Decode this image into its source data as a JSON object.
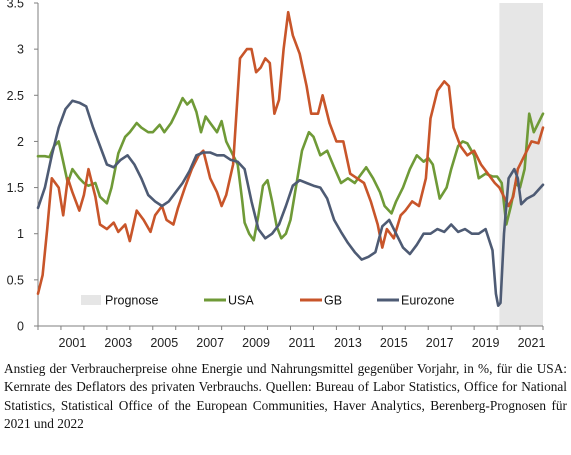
{
  "chart_data": {
    "type": "line",
    "title": "",
    "xlabel": "",
    "ylabel": "",
    "xlim": [
      2000.0,
      2022.0
    ],
    "ylim": [
      0,
      3.5
    ],
    "yticks": [
      0,
      0.5,
      1,
      1.5,
      2,
      2.5,
      3,
      3.5
    ],
    "ytick_labels": [
      "0",
      "0.5",
      "1",
      "1.5",
      "2",
      "2.5",
      "3",
      "3.5"
    ],
    "xticks": [
      2001,
      2003,
      2005,
      2007,
      2009,
      2011,
      2013,
      2015,
      2017,
      2019,
      2021
    ],
    "xtick_labels": [
      "2001",
      "2003",
      "2005",
      "2007",
      "2009",
      "2011",
      "2013",
      "2015",
      "2017",
      "2019",
      "2021"
    ],
    "forecast_region": {
      "label": "Prognose",
      "from": 2020.1,
      "to": 2022.0,
      "color": "#e6e6e6"
    },
    "legend_position": "bottom",
    "series": [
      {
        "name": "USA",
        "color": "#6f9a37",
        "points": [
          [
            2000.0,
            1.84
          ],
          [
            2000.3,
            1.84
          ],
          [
            2000.5,
            1.83
          ],
          [
            2000.7,
            1.95
          ],
          [
            2000.9,
            2.0
          ],
          [
            2001.1,
            1.78
          ],
          [
            2001.3,
            1.55
          ],
          [
            2001.5,
            1.7
          ],
          [
            2001.8,
            1.6
          ],
          [
            2002.0,
            1.55
          ],
          [
            2002.2,
            1.52
          ],
          [
            2002.5,
            1.55
          ],
          [
            2002.7,
            1.4
          ],
          [
            2003.0,
            1.33
          ],
          [
            2003.2,
            1.5
          ],
          [
            2003.5,
            1.87
          ],
          [
            2003.8,
            2.05
          ],
          [
            2004.0,
            2.1
          ],
          [
            2004.3,
            2.2
          ],
          [
            2004.5,
            2.15
          ],
          [
            2004.8,
            2.1
          ],
          [
            2005.0,
            2.1
          ],
          [
            2005.3,
            2.18
          ],
          [
            2005.5,
            2.1
          ],
          [
            2005.8,
            2.2
          ],
          [
            2006.0,
            2.3
          ],
          [
            2006.3,
            2.47
          ],
          [
            2006.5,
            2.4
          ],
          [
            2006.7,
            2.45
          ],
          [
            2006.9,
            2.32
          ],
          [
            2007.1,
            2.1
          ],
          [
            2007.3,
            2.27
          ],
          [
            2007.5,
            2.2
          ],
          [
            2007.8,
            2.1
          ],
          [
            2008.0,
            2.22
          ],
          [
            2008.2,
            2.0
          ],
          [
            2008.5,
            1.85
          ],
          [
            2008.7,
            1.75
          ],
          [
            2008.9,
            1.35
          ],
          [
            2009.0,
            1.12
          ],
          [
            2009.2,
            1.0
          ],
          [
            2009.4,
            0.93
          ],
          [
            2009.6,
            1.2
          ],
          [
            2009.8,
            1.52
          ],
          [
            2010.0,
            1.58
          ],
          [
            2010.2,
            1.35
          ],
          [
            2010.4,
            1.08
          ],
          [
            2010.6,
            0.95
          ],
          [
            2010.8,
            1.0
          ],
          [
            2011.0,
            1.15
          ],
          [
            2011.2,
            1.45
          ],
          [
            2011.5,
            1.9
          ],
          [
            2011.8,
            2.1
          ],
          [
            2012.0,
            2.05
          ],
          [
            2012.3,
            1.85
          ],
          [
            2012.6,
            1.9
          ],
          [
            2012.9,
            1.72
          ],
          [
            2013.2,
            1.55
          ],
          [
            2013.5,
            1.6
          ],
          [
            2013.8,
            1.55
          ],
          [
            2014.0,
            1.62
          ],
          [
            2014.3,
            1.72
          ],
          [
            2014.6,
            1.6
          ],
          [
            2014.9,
            1.45
          ],
          [
            2015.1,
            1.3
          ],
          [
            2015.4,
            1.22
          ],
          [
            2015.6,
            1.35
          ],
          [
            2015.9,
            1.5
          ],
          [
            2016.2,
            1.7
          ],
          [
            2016.5,
            1.85
          ],
          [
            2016.8,
            1.78
          ],
          [
            2017.0,
            1.82
          ],
          [
            2017.2,
            1.75
          ],
          [
            2017.5,
            1.38
          ],
          [
            2017.8,
            1.5
          ],
          [
            2018.0,
            1.7
          ],
          [
            2018.3,
            1.95
          ],
          [
            2018.5,
            2.0
          ],
          [
            2018.7,
            1.98
          ],
          [
            2019.0,
            1.85
          ],
          [
            2019.2,
            1.6
          ],
          [
            2019.5,
            1.65
          ],
          [
            2019.8,
            1.62
          ],
          [
            2020.0,
            1.62
          ],
          [
            2020.2,
            1.55
          ],
          [
            2020.4,
            1.1
          ],
          [
            2020.6,
            1.3
          ],
          [
            2020.8,
            1.55
          ],
          [
            2021.0,
            1.5
          ],
          [
            2021.2,
            1.7
          ],
          [
            2021.4,
            2.3
          ],
          [
            2021.6,
            2.1
          ],
          [
            2021.8,
            2.2
          ],
          [
            2022.0,
            2.3
          ]
        ]
      },
      {
        "name": "GB",
        "color": "#c8552a",
        "points": [
          [
            2000.0,
            0.35
          ],
          [
            2000.2,
            0.55
          ],
          [
            2000.4,
            1.05
          ],
          [
            2000.6,
            1.6
          ],
          [
            2000.9,
            1.5
          ],
          [
            2001.1,
            1.2
          ],
          [
            2001.3,
            1.6
          ],
          [
            2001.5,
            1.45
          ],
          [
            2001.8,
            1.25
          ],
          [
            2002.0,
            1.42
          ],
          [
            2002.2,
            1.7
          ],
          [
            2002.5,
            1.4
          ],
          [
            2002.7,
            1.1
          ],
          [
            2003.0,
            1.05
          ],
          [
            2003.3,
            1.12
          ],
          [
            2003.5,
            1.02
          ],
          [
            2003.8,
            1.1
          ],
          [
            2004.0,
            0.92
          ],
          [
            2004.3,
            1.25
          ],
          [
            2004.6,
            1.15
          ],
          [
            2004.9,
            1.02
          ],
          [
            2005.1,
            1.2
          ],
          [
            2005.4,
            1.3
          ],
          [
            2005.6,
            1.15
          ],
          [
            2005.9,
            1.1
          ],
          [
            2006.1,
            1.28
          ],
          [
            2006.4,
            1.5
          ],
          [
            2006.7,
            1.7
          ],
          [
            2007.0,
            1.85
          ],
          [
            2007.2,
            1.9
          ],
          [
            2007.5,
            1.6
          ],
          [
            2007.8,
            1.45
          ],
          [
            2008.0,
            1.3
          ],
          [
            2008.2,
            1.42
          ],
          [
            2008.5,
            1.75
          ],
          [
            2008.8,
            2.9
          ],
          [
            2009.1,
            3.0
          ],
          [
            2009.3,
            3.0
          ],
          [
            2009.5,
            2.75
          ],
          [
            2009.7,
            2.8
          ],
          [
            2009.9,
            2.9
          ],
          [
            2010.1,
            2.85
          ],
          [
            2010.3,
            2.3
          ],
          [
            2010.5,
            2.45
          ],
          [
            2010.7,
            3.0
          ],
          [
            2010.9,
            3.4
          ],
          [
            2011.1,
            3.15
          ],
          [
            2011.4,
            2.95
          ],
          [
            2011.7,
            2.6
          ],
          [
            2011.9,
            2.3
          ],
          [
            2012.2,
            2.3
          ],
          [
            2012.4,
            2.5
          ],
          [
            2012.7,
            2.2
          ],
          [
            2013.0,
            2.0
          ],
          [
            2013.3,
            2.0
          ],
          [
            2013.6,
            1.65
          ],
          [
            2013.9,
            1.6
          ],
          [
            2014.2,
            1.55
          ],
          [
            2014.5,
            1.35
          ],
          [
            2014.8,
            1.1
          ],
          [
            2015.0,
            0.85
          ],
          [
            2015.2,
            1.05
          ],
          [
            2015.5,
            0.95
          ],
          [
            2015.8,
            1.2
          ],
          [
            2016.0,
            1.25
          ],
          [
            2016.3,
            1.35
          ],
          [
            2016.6,
            1.3
          ],
          [
            2016.9,
            1.6
          ],
          [
            2017.1,
            2.25
          ],
          [
            2017.4,
            2.55
          ],
          [
            2017.7,
            2.65
          ],
          [
            2017.9,
            2.6
          ],
          [
            2018.1,
            2.15
          ],
          [
            2018.4,
            1.95
          ],
          [
            2018.7,
            1.85
          ],
          [
            2019.0,
            1.9
          ],
          [
            2019.3,
            1.75
          ],
          [
            2019.6,
            1.65
          ],
          [
            2019.9,
            1.55
          ],
          [
            2020.1,
            1.5
          ],
          [
            2020.3,
            1.4
          ],
          [
            2020.5,
            1.3
          ],
          [
            2020.7,
            1.4
          ],
          [
            2020.9,
            1.7
          ],
          [
            2021.2,
            1.85
          ],
          [
            2021.5,
            2.0
          ],
          [
            2021.8,
            1.98
          ],
          [
            2022.0,
            2.15
          ]
        ]
      },
      {
        "name": "Eurozone",
        "color": "#4e5b74",
        "points": [
          [
            2000.0,
            1.28
          ],
          [
            2000.3,
            1.5
          ],
          [
            2000.6,
            1.85
          ],
          [
            2000.9,
            2.15
          ],
          [
            2001.2,
            2.35
          ],
          [
            2001.5,
            2.44
          ],
          [
            2001.8,
            2.42
          ],
          [
            2002.1,
            2.38
          ],
          [
            2002.4,
            2.15
          ],
          [
            2002.7,
            1.95
          ],
          [
            2003.0,
            1.75
          ],
          [
            2003.3,
            1.72
          ],
          [
            2003.6,
            1.8
          ],
          [
            2003.9,
            1.85
          ],
          [
            2004.2,
            1.75
          ],
          [
            2004.5,
            1.6
          ],
          [
            2004.8,
            1.42
          ],
          [
            2005.1,
            1.35
          ],
          [
            2005.4,
            1.3
          ],
          [
            2005.7,
            1.35
          ],
          [
            2006.0,
            1.45
          ],
          [
            2006.3,
            1.55
          ],
          [
            2006.6,
            1.68
          ],
          [
            2006.9,
            1.85
          ],
          [
            2007.2,
            1.88
          ],
          [
            2007.5,
            1.88
          ],
          [
            2007.8,
            1.85
          ],
          [
            2008.1,
            1.85
          ],
          [
            2008.4,
            1.8
          ],
          [
            2008.7,
            1.78
          ],
          [
            2009.0,
            1.7
          ],
          [
            2009.3,
            1.35
          ],
          [
            2009.6,
            1.05
          ],
          [
            2009.9,
            0.95
          ],
          [
            2010.2,
            1.0
          ],
          [
            2010.5,
            1.1
          ],
          [
            2010.8,
            1.3
          ],
          [
            2011.1,
            1.52
          ],
          [
            2011.4,
            1.58
          ],
          [
            2011.7,
            1.55
          ],
          [
            2012.0,
            1.52
          ],
          [
            2012.3,
            1.5
          ],
          [
            2012.6,
            1.38
          ],
          [
            2012.9,
            1.15
          ],
          [
            2013.2,
            1.02
          ],
          [
            2013.5,
            0.9
          ],
          [
            2013.8,
            0.8
          ],
          [
            2014.1,
            0.72
          ],
          [
            2014.4,
            0.75
          ],
          [
            2014.7,
            0.8
          ],
          [
            2015.0,
            1.08
          ],
          [
            2015.3,
            1.15
          ],
          [
            2015.6,
            1.0
          ],
          [
            2015.9,
            0.85
          ],
          [
            2016.2,
            0.78
          ],
          [
            2016.5,
            0.88
          ],
          [
            2016.8,
            1.0
          ],
          [
            2017.1,
            1.0
          ],
          [
            2017.4,
            1.05
          ],
          [
            2017.7,
            1.02
          ],
          [
            2018.0,
            1.1
          ],
          [
            2018.3,
            1.02
          ],
          [
            2018.6,
            1.05
          ],
          [
            2018.9,
            1.0
          ],
          [
            2019.2,
            1.0
          ],
          [
            2019.5,
            1.05
          ],
          [
            2019.8,
            0.82
          ],
          [
            2019.95,
            0.35
          ],
          [
            2020.05,
            0.22
          ],
          [
            2020.15,
            0.25
          ],
          [
            2020.3,
            1.0
          ],
          [
            2020.5,
            1.6
          ],
          [
            2020.75,
            1.7
          ],
          [
            2020.9,
            1.6
          ],
          [
            2021.05,
            1.32
          ],
          [
            2021.3,
            1.38
          ],
          [
            2021.6,
            1.42
          ],
          [
            2022.0,
            1.53
          ]
        ]
      }
    ]
  },
  "caption": "Anstieg der Verbraucherpreise ohne Energie und Nahrungsmittel gegenüber Vorjahr, in %, für die USA: Kernrate des Deflators des privaten Verbrauchs.  Quellen: Bureau of Labor Statistics, Office for National Statistics, Statistical Office of the European Communities, Haver Analytics, Berenberg-Prognosen für 2021 und 2022"
}
